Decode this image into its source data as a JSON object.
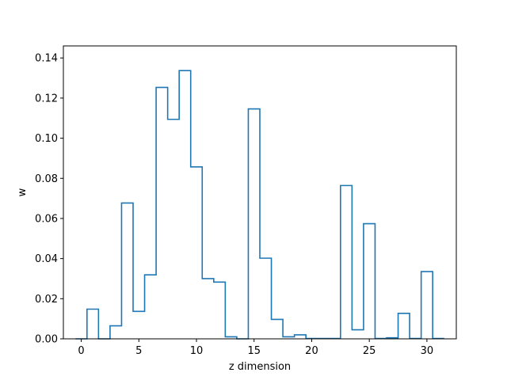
{
  "chart_data": {
    "type": "step",
    "title": "",
    "xlabel": "z dimension",
    "ylabel": "w",
    "xlim": [
      -1.55,
      32.55
    ],
    "ylim": [
      0,
      0.146
    ],
    "x_ticks": [
      0,
      5,
      10,
      15,
      20,
      25,
      30
    ],
    "y_ticks": [
      0.0,
      0.02,
      0.04,
      0.06,
      0.08,
      0.1,
      0.12,
      0.14
    ],
    "x_tick_labels": [
      "0",
      "5",
      "10",
      "15",
      "20",
      "25",
      "30"
    ],
    "y_tick_labels": [
      "0.00",
      "0.02",
      "0.04",
      "0.06",
      "0.08",
      "0.10",
      "0.12",
      "0.14"
    ],
    "grid": false,
    "series": [
      {
        "color": "#1f77b4",
        "x": [
          0,
          1,
          2,
          3,
          4,
          5,
          6,
          7,
          8,
          9,
          10,
          11,
          12,
          13,
          14,
          15,
          16,
          17,
          18,
          19,
          20,
          21,
          22,
          23,
          24,
          25,
          26,
          27,
          28,
          29,
          30,
          31
        ],
        "values": [
          0.0,
          0.0148,
          0.0,
          0.0065,
          0.0677,
          0.0137,
          0.0319,
          0.1253,
          0.1094,
          0.1337,
          0.0857,
          0.03,
          0.0283,
          0.001,
          0.0,
          0.1146,
          0.0402,
          0.0097,
          0.001,
          0.002,
          0.0002,
          0.0002,
          0.0002,
          0.0764,
          0.0045,
          0.0574,
          0.0002,
          0.0005,
          0.0127,
          0.0002,
          0.0335,
          0.0002
        ]
      }
    ]
  }
}
